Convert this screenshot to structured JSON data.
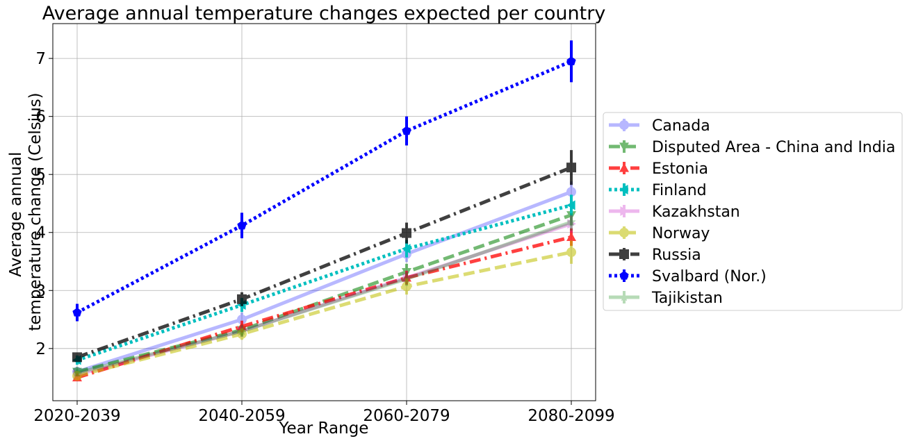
{
  "chart_data": {
    "type": "line",
    "title": "Average annual temperature changes expected per country",
    "xlabel": "Year Range",
    "ylabel_lines": [
      "Average annual",
      "temperature change (Celsius)"
    ],
    "categories": [
      "2020-2039",
      "2040-2059",
      "2060-2079",
      "2080-2099"
    ],
    "ylim": [
      1.1,
      7.6
    ],
    "yticks": [
      2,
      3,
      4,
      5,
      6,
      7
    ],
    "grid": true,
    "legend_position": "center-right outside",
    "series": [
      {
        "name": "Canada",
        "color": "#0000ff",
        "alpha": 0.28,
        "dash": "solid",
        "marker": "circle",
        "values": [
          1.6,
          2.5,
          3.63,
          4.7
        ],
        "errors": [
          0.08,
          0.12,
          0.14,
          0.18
        ]
      },
      {
        "name": "Disputed Area - China and India",
        "color": "#008000",
        "alpha": 0.55,
        "dash": "dashed",
        "marker": "triangle-down",
        "values": [
          1.6,
          2.32,
          3.32,
          4.3
        ],
        "errors": [
          0.08,
          0.1,
          0.14,
          0.18
        ]
      },
      {
        "name": "Estonia",
        "color": "#ff0000",
        "alpha": 0.75,
        "dash": "dashdot",
        "marker": "triangle-up",
        "values": [
          1.5,
          2.38,
          3.22,
          3.92
        ],
        "errors": [
          0.06,
          0.1,
          0.12,
          0.15
        ]
      },
      {
        "name": "Finland",
        "color": "#00bfbf",
        "alpha": 1.0,
        "dash": "dotted",
        "marker": "triangle-left",
        "values": [
          1.8,
          2.75,
          3.72,
          4.47
        ],
        "errors": [
          0.08,
          0.12,
          0.15,
          0.18
        ]
      },
      {
        "name": "Kazakhstan",
        "color": "#bf00bf",
        "alpha": 0.28,
        "dash": "solid",
        "marker": "triangle-right",
        "values": [
          1.55,
          2.3,
          3.22,
          4.15
        ],
        "errors": [
          0.06,
          0.1,
          0.12,
          0.15
        ]
      },
      {
        "name": "Norway",
        "color": "#bfbf00",
        "alpha": 0.55,
        "dash": "dashed",
        "marker": "circle",
        "values": [
          1.53,
          2.25,
          3.07,
          3.66
        ],
        "errors": [
          0.06,
          0.1,
          0.14,
          0.2
        ]
      },
      {
        "name": "Russia",
        "color": "#000000",
        "alpha": 0.75,
        "dash": "dashdot",
        "marker": "square",
        "values": [
          1.85,
          2.85,
          3.99,
          5.12
        ],
        "errors": [
          0.08,
          0.12,
          0.18,
          0.3
        ]
      },
      {
        "name": "Svalbard (Nor.)",
        "color": "#0000ff",
        "alpha": 1.0,
        "dash": "dotted",
        "marker": "pentagon",
        "values": [
          2.62,
          4.12,
          5.75,
          6.95
        ],
        "errors": [
          0.15,
          0.22,
          0.25,
          0.36
        ]
      },
      {
        "name": "Tajikistan",
        "color": "#008000",
        "alpha": 0.28,
        "dash": "solid",
        "marker": "star",
        "values": [
          1.58,
          2.3,
          3.2,
          4.18
        ],
        "errors": [
          0.06,
          0.1,
          0.12,
          0.15
        ]
      }
    ]
  }
}
